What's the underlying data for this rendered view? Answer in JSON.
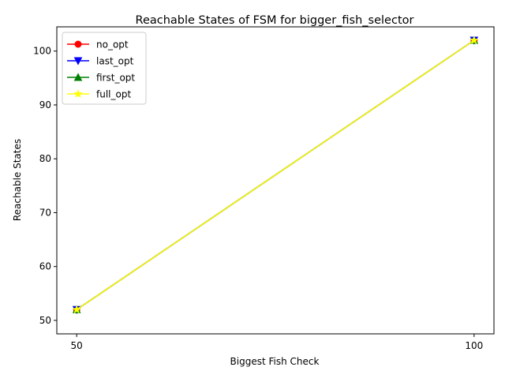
{
  "chart_data": {
    "type": "line",
    "title": "Reachable States of FSM for bigger_fish_selector",
    "xlabel": "Biggest Fish Check",
    "ylabel": "Reachable States",
    "x": [
      50,
      100
    ],
    "xticks": [
      "50",
      "100"
    ],
    "xlim": [
      47.5,
      102.5
    ],
    "ylim": [
      47.5,
      104.5
    ],
    "yticks": [
      50,
      60,
      70,
      80,
      90,
      100
    ],
    "grid": false,
    "legend_position": "top-left",
    "series": [
      {
        "name": "no_opt",
        "values": [
          52,
          102
        ],
        "color": "#ff0000",
        "marker": "circle"
      },
      {
        "name": "last_opt",
        "values": [
          52,
          102
        ],
        "color": "#0000ff",
        "marker": "triangle-down"
      },
      {
        "name": "first_opt",
        "values": [
          52,
          102
        ],
        "color": "#008000",
        "marker": "triangle-up"
      },
      {
        "name": "full_opt",
        "values": [
          52,
          102
        ],
        "color": "#ffff00",
        "marker": "star"
      }
    ]
  }
}
